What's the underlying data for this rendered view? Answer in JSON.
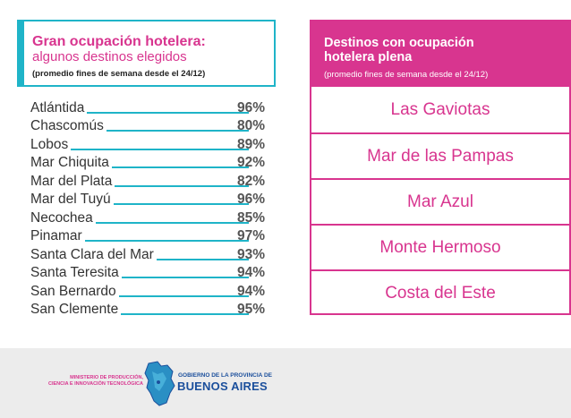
{
  "left": {
    "title": "Gran ocupación hotelera:",
    "subtitle": "algunos destinos elegidos",
    "note": "(promedio fines de semana desde el 24/12)",
    "rows": [
      {
        "name": "Atlántida",
        "pct": "96%"
      },
      {
        "name": "Chascomús",
        "pct": "80%"
      },
      {
        "name": "Lobos",
        "pct": "89%"
      },
      {
        "name": "Mar Chiquita",
        "pct": "92%"
      },
      {
        "name": "Mar del Plata",
        "pct": "82%"
      },
      {
        "name": "Mar del Tuyú",
        "pct": "96%"
      },
      {
        "name": "Necochea",
        "pct": "85%"
      },
      {
        "name": "Pinamar",
        "pct": "97%"
      },
      {
        "name": "Santa Clara del Mar",
        "pct": "93%"
      },
      {
        "name": "Santa Teresita",
        "pct": "94%"
      },
      {
        "name": "San Bernardo",
        "pct": "94%"
      },
      {
        "name": "San Clemente",
        "pct": "95%"
      }
    ]
  },
  "right": {
    "title_line1": "Destinos con ocupación",
    "title_line2": "hotelera plena",
    "note": "(promedio fines de semana desde el 24/12)",
    "destinations": [
      "Las Gaviotas",
      "Mar de las Pampas",
      "Mar Azul",
      "Monte Hermoso",
      "Costa del Este"
    ]
  },
  "footer": {
    "ministry_line1": "Ministerio de Producción,",
    "ministry_line2": "Ciencia e Innovación Tecnológica",
    "gov_small": "GOBIERNO DE LA PROVINCIA DE",
    "gov_big": "BUENOS AIRES"
  },
  "colors": {
    "accent_teal": "#1fb4c8",
    "accent_magenta": "#d8358f",
    "brand_blue": "#1b4f9c"
  }
}
